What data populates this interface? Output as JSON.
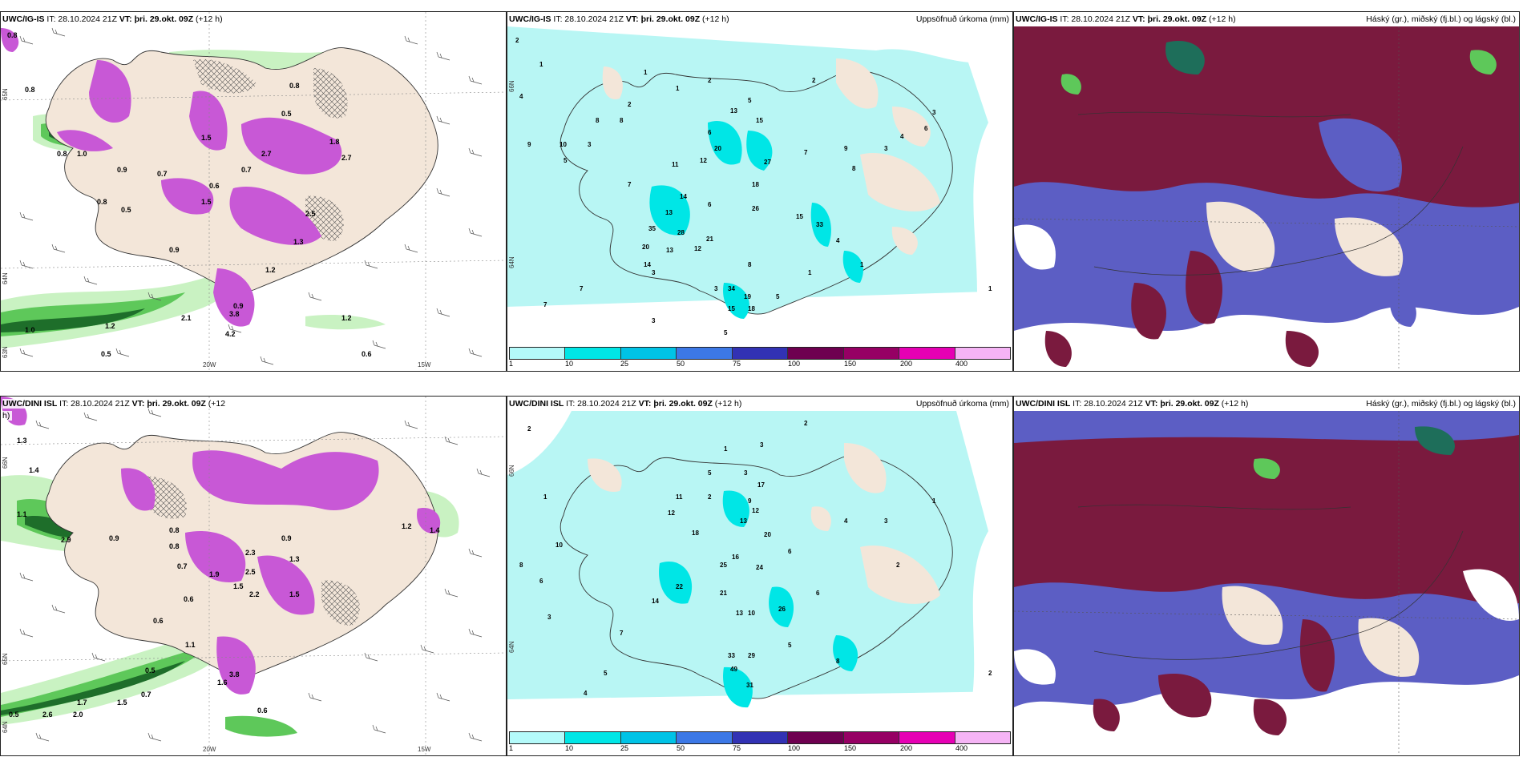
{
  "panels": {
    "top_left": {
      "model": "UWC/IG-IS",
      "it": "IT: 28.10.2024 21Z",
      "vt_label": "VT:",
      "vt": "þri. 29.okt. 09Z",
      "lead": "(+12 h)",
      "right_title": "",
      "lat_labels": [
        "65N",
        "64N",
        "63N"
      ],
      "lon_labels": [
        "20W",
        "15W"
      ],
      "values": [
        "0.8",
        "0.8",
        "0.8",
        "1.0",
        "0.9",
        "0.7",
        "0.5",
        "2.5",
        "2.7",
        "2.7",
        "1.8",
        "1.5",
        "1.3",
        "1.2",
        "0.9",
        "2.1",
        "1.2",
        "0.8",
        "1.2",
        "0.9",
        "0.6",
        "0.5",
        "0.5",
        "0.7",
        "0.6",
        "1.0",
        "1.5",
        "0.8",
        "3.8",
        "4.2"
      ]
    },
    "top_mid": {
      "model": "UWC/IG-IS",
      "it": "IT: 28.10.2024 21Z",
      "vt_label": "VT:",
      "vt": "þri. 29.okt. 09Z",
      "lead": "(+12 h)",
      "right_title": "Uppsöfnuð úrkoma (mm)",
      "lat_labels": [
        "66N",
        "64N"
      ],
      "values": [
        "2",
        "1",
        "4",
        "9",
        "5",
        "3",
        "2",
        "7",
        "8",
        "1",
        "1",
        "2",
        "10",
        "5",
        "13",
        "20",
        "15",
        "27",
        "7",
        "9",
        "3",
        "4",
        "6",
        "12",
        "14",
        "6",
        "18",
        "26",
        "13",
        "28",
        "35",
        "21",
        "20",
        "13",
        "12",
        "14",
        "33",
        "15",
        "8",
        "3",
        "34",
        "19",
        "15",
        "18",
        "7",
        "5",
        "3",
        "4",
        "1",
        "1",
        "3",
        "6",
        "5",
        "7",
        "8",
        "2",
        "1",
        "11",
        "8",
        "3"
      ],
      "scale_labels": [
        "1",
        "10",
        "25",
        "50",
        "75",
        "100",
        "150",
        "200",
        "400"
      ],
      "scale_colors": [
        "#b4fafa",
        "#00e6e6",
        "#00c3e6",
        "#3c78e6",
        "#3232b4",
        "#6e0050",
        "#960064",
        "#e600b4",
        "#f5b4f5"
      ]
    },
    "top_right": {
      "model": "UWC/IG-IS",
      "it": "IT: 28.10.2024 21Z",
      "vt_label": "VT:",
      "vt": "þri. 29.okt. 09Z",
      "lead": "(+12 h)",
      "right_title": "Háský (gr.), miðský (fj.bl.) og lágský (bl.)"
    },
    "bottom_left": {
      "model": "UWC/DINI ISL",
      "it": "IT: 28.10.2024 21Z",
      "vt_label": "VT:",
      "vt": "þri. 29.okt. 09Z",
      "lead": "(+12",
      "lead2": "h)",
      "right_title": "",
      "lat_labels": [
        "66N",
        "65N",
        "64N"
      ],
      "lon_labels": [
        "20W",
        "15W"
      ],
      "values": [
        "1.3",
        "1.4",
        "1.1",
        "0.9",
        "2.9",
        "0.8",
        "1.9",
        "2.3",
        "2.5",
        "1.5",
        "1.3",
        "0.7",
        "0.6",
        "0.6",
        "0.5",
        "1.1",
        "0.7",
        "1.5",
        "2.0",
        "1.7",
        "1.5",
        "0.9",
        "0.8",
        "1.6",
        "3.8",
        "2.6",
        "1.2",
        "2.2",
        "1.4",
        "0.5",
        "0.6"
      ]
    },
    "bottom_mid": {
      "model": "UWC/DINI ISL",
      "it": "IT: 28.10.2024 21Z",
      "vt_label": "VT:",
      "vt": "þri. 29.okt. 09Z",
      "lead": "(+12 h)",
      "right_title": "Uppsöfnuð úrkoma (mm)",
      "lat_labels": [
        "66N",
        "64N"
      ],
      "values": [
        "2",
        "2",
        "1",
        "3",
        "1",
        "10",
        "8",
        "6",
        "5",
        "3",
        "2",
        "9",
        "12",
        "13",
        "17",
        "20",
        "18",
        "16",
        "25",
        "24",
        "22",
        "21",
        "14",
        "13",
        "10",
        "33",
        "29",
        "49",
        "31",
        "26",
        "7",
        "5",
        "4",
        "3",
        "12",
        "11",
        "6",
        "4",
        "2",
        "2",
        "1",
        "3",
        "8",
        "5",
        "6"
      ],
      "scale_labels": [
        "1",
        "10",
        "25",
        "50",
        "75",
        "100",
        "150",
        "200",
        "400"
      ],
      "scale_colors": [
        "#b4fafa",
        "#00e6e6",
        "#00c3e6",
        "#3c78e6",
        "#3232b4",
        "#6e0050",
        "#960064",
        "#e600b4",
        "#f5b4f5"
      ]
    },
    "bottom_right": {
      "model": "UWC/DINI ISL",
      "it": "IT: 28.10.2024 21Z",
      "vt_label": "VT:",
      "vt": "þri. 29.okt. 09Z",
      "lead": "(+12 h)",
      "right_title": "Háský (gr.), miðský (fj.bl.) og lágský (bl.)"
    }
  },
  "colors": {
    "land": "#f3e6d9",
    "sea_light": "#b8f6f4",
    "precip_green_light": "#c9f2c2",
    "precip_green": "#5ec85a",
    "precip_green_dark": "#1e6e2a",
    "precip_purple": "#c858d6",
    "precip_purple_light": "#e89be8",
    "cloud_high": "#7a1a3e",
    "cloud_mid": "#5c5ec4",
    "cloud_low": "#7fa7f0"
  }
}
